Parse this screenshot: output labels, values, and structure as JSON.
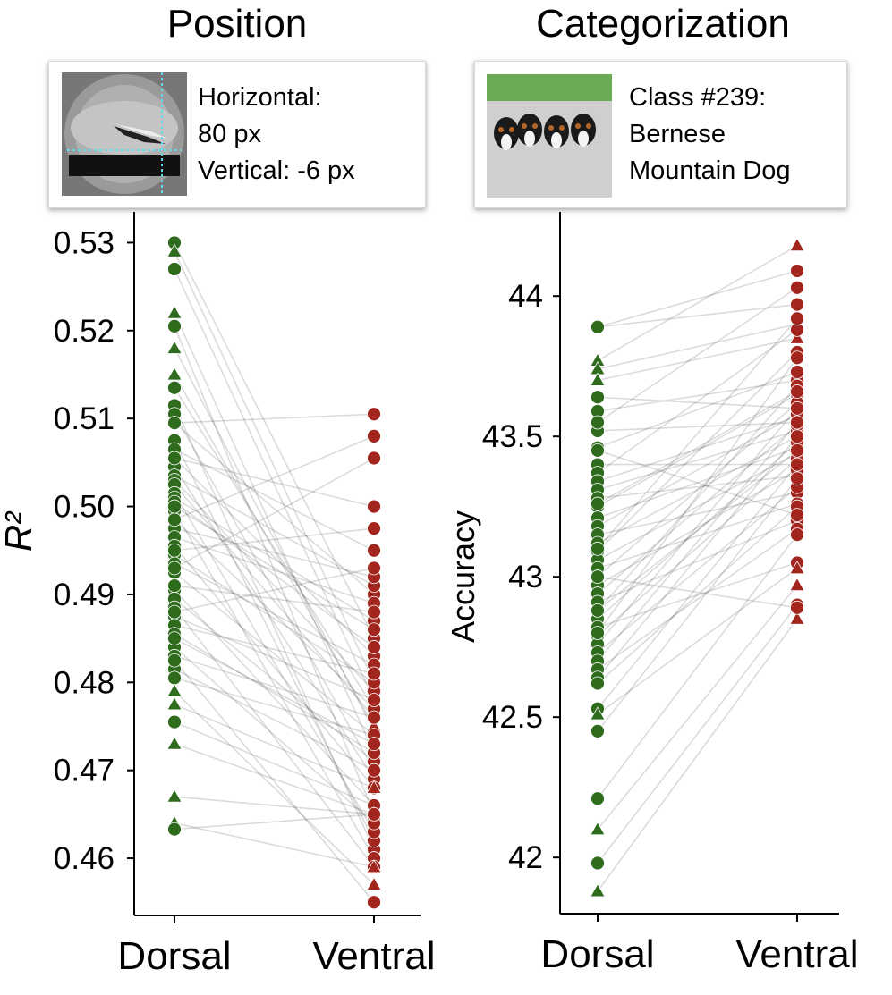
{
  "panels": [
    {
      "title": "Position",
      "info": {
        "image_icon": "bird-grating-thumbnail",
        "lines": [
          "Horizontal:",
          "80 px",
          "Vertical: -6 px"
        ]
      }
    },
    {
      "title": "Categorization",
      "info": {
        "image_icon": "dog-puppies-thumbnail",
        "lines": [
          "Class #239:",
          "Bernese",
          "Mountain Dog"
        ]
      }
    }
  ],
  "colors": {
    "dorsal": "#2e6b1d",
    "ventral": "#a3261e",
    "pair_line": "#000000"
  },
  "chart_data": [
    {
      "type": "scatter",
      "title": "Position",
      "xlabel": "",
      "ylabel": "R²",
      "categories": [
        "Dorsal",
        "Ventral"
      ],
      "yticks": [
        "0.46",
        "0.47",
        "0.48",
        "0.49",
        "0.50",
        "0.51",
        "0.52",
        "0.53"
      ],
      "ylim": [
        0.4535,
        0.5335
      ],
      "grid": false,
      "marker_shapes": [
        "circle",
        "triangle"
      ],
      "pairs": [
        [
          0.53,
          0.485,
          "circle"
        ],
        [
          0.527,
          0.478,
          "circle"
        ],
        [
          0.529,
          0.48,
          "triangle"
        ],
        [
          0.522,
          0.472,
          "triangle"
        ],
        [
          0.5205,
          0.465,
          "circle"
        ],
        [
          0.518,
          0.4745,
          "triangle"
        ],
        [
          0.515,
          0.475,
          "triangle"
        ],
        [
          0.5135,
          0.477,
          "circle"
        ],
        [
          0.5115,
          0.461,
          "circle"
        ],
        [
          0.5105,
          0.47,
          "circle"
        ],
        [
          0.5095,
          0.49,
          "circle"
        ],
        [
          0.5075,
          0.462,
          "circle"
        ],
        [
          0.5065,
          0.495,
          "circle"
        ],
        [
          0.5055,
          0.483,
          "circle"
        ],
        [
          0.5045,
          0.469,
          "circle"
        ],
        [
          0.5035,
          0.491,
          "circle"
        ],
        [
          0.503,
          0.479,
          "circle"
        ],
        [
          0.5025,
          0.476,
          "circle"
        ],
        [
          0.5015,
          0.463,
          "circle"
        ],
        [
          0.501,
          0.487,
          "circle"
        ],
        [
          0.5005,
          0.484,
          "circle"
        ],
        [
          0.4995,
          0.46,
          "circle"
        ],
        [
          0.4985,
          0.477,
          "circle"
        ],
        [
          0.4975,
          0.492,
          "circle"
        ],
        [
          0.4965,
          0.489,
          "circle"
        ],
        [
          0.4955,
          0.468,
          "circle"
        ],
        [
          0.4945,
          0.48,
          "circle"
        ],
        [
          0.4935,
          0.482,
          "circle"
        ],
        [
          0.4925,
          0.474,
          "circle"
        ],
        [
          0.4905,
          0.466,
          "circle"
        ],
        [
          0.4895,
          0.471,
          "circle"
        ],
        [
          0.4885,
          0.459,
          "circle"
        ],
        [
          0.4875,
          0.478,
          "circle"
        ],
        [
          0.4865,
          0.481,
          "circle"
        ],
        [
          0.4855,
          0.472,
          "circle"
        ],
        [
          0.484,
          0.464,
          "circle"
        ],
        [
          0.483,
          0.476,
          "circle"
        ],
        [
          0.4815,
          0.47,
          "circle"
        ],
        [
          0.4805,
          0.474,
          "circle"
        ],
        [
          0.479,
          0.457,
          "triangle"
        ],
        [
          0.4775,
          0.468,
          "triangle"
        ],
        [
          0.4755,
          0.466,
          "circle"
        ],
        [
          0.473,
          0.465,
          "triangle"
        ],
        [
          0.467,
          0.465,
          "triangle"
        ],
        [
          0.464,
          0.459,
          "triangle"
        ],
        [
          0.4633,
          0.465,
          "circle"
        ],
        [
          0.5095,
          0.5105,
          "circle"
        ],
        [
          0.4985,
          0.508,
          "circle"
        ],
        [
          0.493,
          0.5055,
          "circle"
        ],
        [
          0.5055,
          0.5,
          "circle"
        ],
        [
          0.495,
          0.4975,
          "circle"
        ],
        [
          0.488,
          0.493,
          "circle"
        ],
        [
          0.5,
          0.486,
          "circle"
        ],
        [
          0.491,
          0.488,
          "circle"
        ],
        [
          0.485,
          0.473,
          "circle"
        ],
        [
          0.4825,
          0.455,
          "circle"
        ]
      ]
    },
    {
      "type": "scatter",
      "title": "Categorization",
      "xlabel": "",
      "ylabel": "Accuracy",
      "categories": [
        "Dorsal",
        "Ventral"
      ],
      "yticks": [
        "42",
        "42.5",
        "43",
        "43.5",
        "44"
      ],
      "ylim": [
        41.8,
        44.3
      ],
      "grid": false,
      "marker_shapes": [
        "circle",
        "triangle"
      ],
      "pairs": [
        [
          43.89,
          43.97,
          "circle"
        ],
        [
          43.77,
          44.18,
          "triangle"
        ],
        [
          43.74,
          43.9,
          "triangle"
        ],
        [
          43.7,
          43.85,
          "triangle"
        ],
        [
          43.64,
          43.6,
          "circle"
        ],
        [
          43.59,
          43.7,
          "circle"
        ],
        [
          43.52,
          43.55,
          "circle"
        ],
        [
          43.46,
          43.73,
          "circle"
        ],
        [
          43.4,
          43.4,
          "circle"
        ],
        [
          43.37,
          43.88,
          "circle"
        ],
        [
          43.34,
          43.57,
          "circle"
        ],
        [
          43.31,
          43.52,
          "circle"
        ],
        [
          43.28,
          43.36,
          "circle"
        ],
        [
          43.25,
          43.65,
          "circle"
        ],
        [
          43.21,
          43.46,
          "circle"
        ],
        [
          43.18,
          43.58,
          "circle"
        ],
        [
          43.15,
          43.3,
          "circle"
        ],
        [
          43.12,
          43.5,
          "circle"
        ],
        [
          43.09,
          43.8,
          "circle"
        ],
        [
          43.06,
          43.44,
          "circle"
        ],
        [
          43.03,
          43.26,
          "circle"
        ],
        [
          43.0,
          43.62,
          "circle"
        ],
        [
          42.97,
          43.38,
          "circle"
        ],
        [
          42.94,
          43.54,
          "circle"
        ],
        [
          42.91,
          43.2,
          "circle"
        ],
        [
          42.88,
          43.68,
          "circle"
        ],
        [
          42.85,
          43.48,
          "circle"
        ],
        [
          42.82,
          43.05,
          "circle"
        ],
        [
          42.79,
          43.42,
          "circle"
        ],
        [
          42.76,
          43.6,
          "circle"
        ],
        [
          42.73,
          43.32,
          "circle"
        ],
        [
          42.7,
          43.55,
          "circle"
        ],
        [
          42.67,
          43.17,
          "circle"
        ],
        [
          42.64,
          43.5,
          "circle"
        ],
        [
          42.62,
          43.25,
          "circle"
        ],
        [
          42.53,
          43.4,
          "circle"
        ],
        [
          42.51,
          43.03,
          "triangle"
        ],
        [
          42.45,
          43.35,
          "circle"
        ],
        [
          42.21,
          43.15,
          "circle"
        ],
        [
          42.1,
          42.97,
          "triangle"
        ],
        [
          41.98,
          42.9,
          "circle"
        ],
        [
          41.88,
          42.85,
          "triangle"
        ],
        [
          43.89,
          44.09,
          "circle"
        ],
        [
          43.55,
          44.03,
          "circle"
        ],
        [
          43.1,
          43.92,
          "circle"
        ],
        [
          42.8,
          43.78,
          "circle"
        ],
        [
          43.26,
          43.66,
          "circle"
        ],
        [
          42.88,
          43.45,
          "circle"
        ],
        [
          43.45,
          43.22,
          "circle"
        ],
        [
          43.0,
          42.89,
          "circle"
        ]
      ]
    }
  ]
}
